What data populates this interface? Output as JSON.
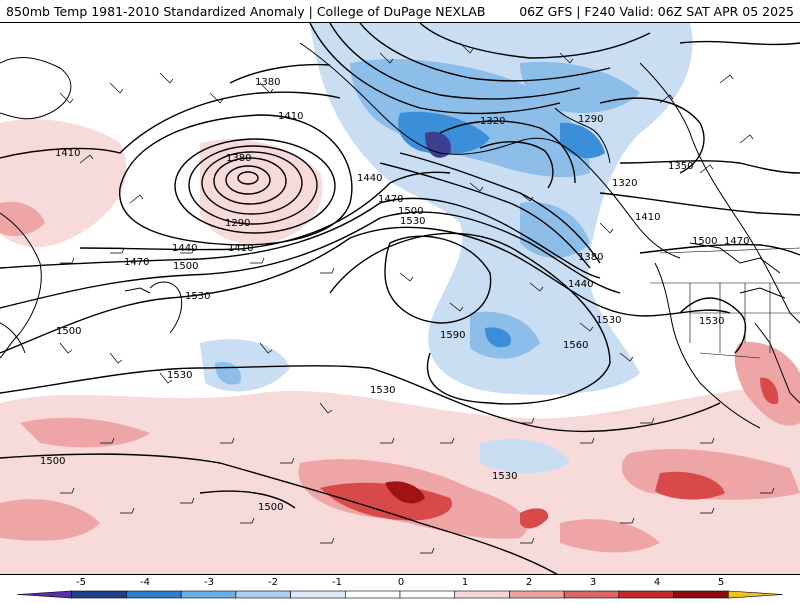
{
  "header": {
    "title_left": "850mb Temp 1981-2010 Standardized Anomaly | College of DuPage NEXLAB",
    "title_right": "06Z GFS | F240 Valid: 06Z SAT APR 05 2025"
  },
  "contour_labels": [
    "1380",
    "1410",
    "1410",
    "1380",
    "1290",
    "1440",
    "1410",
    "1470",
    "1500",
    "1440",
    "1470",
    "1500",
    "1530",
    "1530",
    "1500",
    "1530",
    "1320",
    "1290",
    "1320",
    "1350",
    "1410",
    "1380",
    "1440",
    "1500",
    "1470",
    "1530",
    "1530",
    "1590",
    "1560",
    "1530",
    "1500",
    "1530",
    "1500"
  ],
  "colorbar": {
    "tick_labels": [
      "-5",
      "-4",
      "-3",
      "-2",
      "-1",
      "0",
      "1",
      "2",
      "3",
      "4",
      "5"
    ],
    "colors": [
      "#5a2ea8",
      "#1f3f8f",
      "#2c7fd0",
      "#69aee6",
      "#a9cff0",
      "#dde9f6",
      "#ffffff",
      "#ffffff",
      "#f6d8d8",
      "#eda3a3",
      "#dd6666",
      "#c42a2a",
      "#8e0e0e",
      "#f0c020"
    ]
  },
  "colors": {
    "cold_light": "#c9ddf3",
    "cold_mid": "#8dbde9",
    "cold_strong": "#3a8fd8",
    "cold_extreme": "#3c3f8f",
    "warm_light": "#f7dada",
    "warm_mid": "#eea5a5",
    "warm_strong": "#d84a4a",
    "warm_extreme": "#a01313"
  }
}
